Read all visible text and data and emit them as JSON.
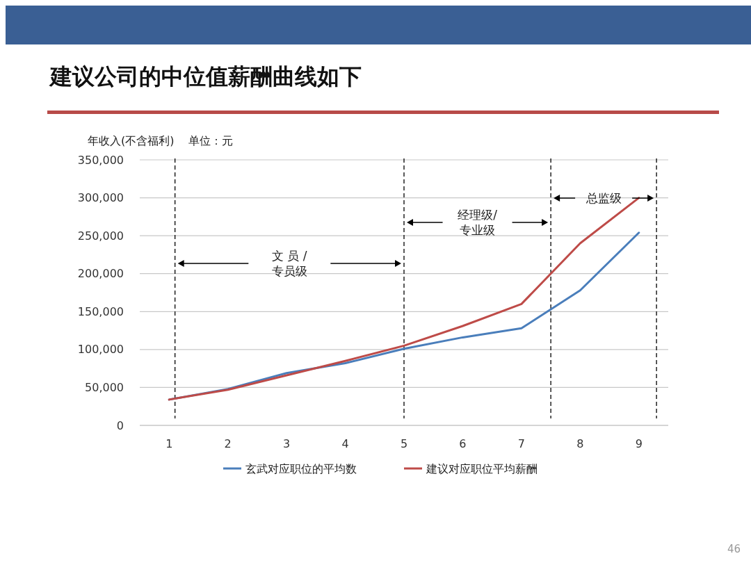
{
  "chart_data": {
    "type": "line",
    "title": "建议公司的中位值薪酬曲线如下",
    "ylabel": "年收入(不含福利)    单位：元",
    "x": [
      1,
      2,
      3,
      4,
      5,
      6,
      7,
      8,
      9
    ],
    "xlim": [
      0.5,
      9.5
    ],
    "xticks": [
      1,
      2,
      3,
      4,
      5,
      6,
      7,
      8,
      9
    ],
    "ylim": [
      0,
      350000
    ],
    "yticks": [
      {
        "value": 0,
        "label": "0"
      },
      {
        "value": 50000,
        "label": "50,000"
      },
      {
        "value": 100000,
        "label": "100,000"
      },
      {
        "value": 150000,
        "label": "150,000"
      },
      {
        "value": 200000,
        "label": "200,000"
      },
      {
        "value": 250000,
        "label": "250,000"
      },
      {
        "value": 300000,
        "label": "300,000"
      },
      {
        "value": 350000,
        "label": "350,000"
      }
    ],
    "series": [
      {
        "name": "玄武对应职位的平均数",
        "color": "#4a7ebb",
        "values": [
          34000,
          48000,
          69000,
          82000,
          101000,
          116000,
          128000,
          178000,
          254000
        ]
      },
      {
        "name": "建议对应职位平均薪酬",
        "color": "#be4b48",
        "values": [
          34000,
          47000,
          66000,
          85000,
          105000,
          131000,
          160000,
          240000,
          300000
        ]
      }
    ],
    "ref_lines": [
      {
        "axis": "x",
        "value": 1.1,
        "line_style": "dashed",
        "color": "#000000"
      },
      {
        "axis": "x",
        "value": 5,
        "line_style": "dashed",
        "color": "#000000"
      },
      {
        "axis": "x",
        "value": 7.5,
        "line_style": "dashed",
        "color": "#000000"
      },
      {
        "axis": "x",
        "value": 9.3,
        "line_style": "dashed",
        "color": "#000000"
      }
    ],
    "annotations": [
      "文 员 /\n专员级",
      "经理级/\n专业级",
      "总监级",
      "46"
    ],
    "grid": "y",
    "legend": "bottom",
    "marker": "none",
    "line_style": "solid"
  }
}
